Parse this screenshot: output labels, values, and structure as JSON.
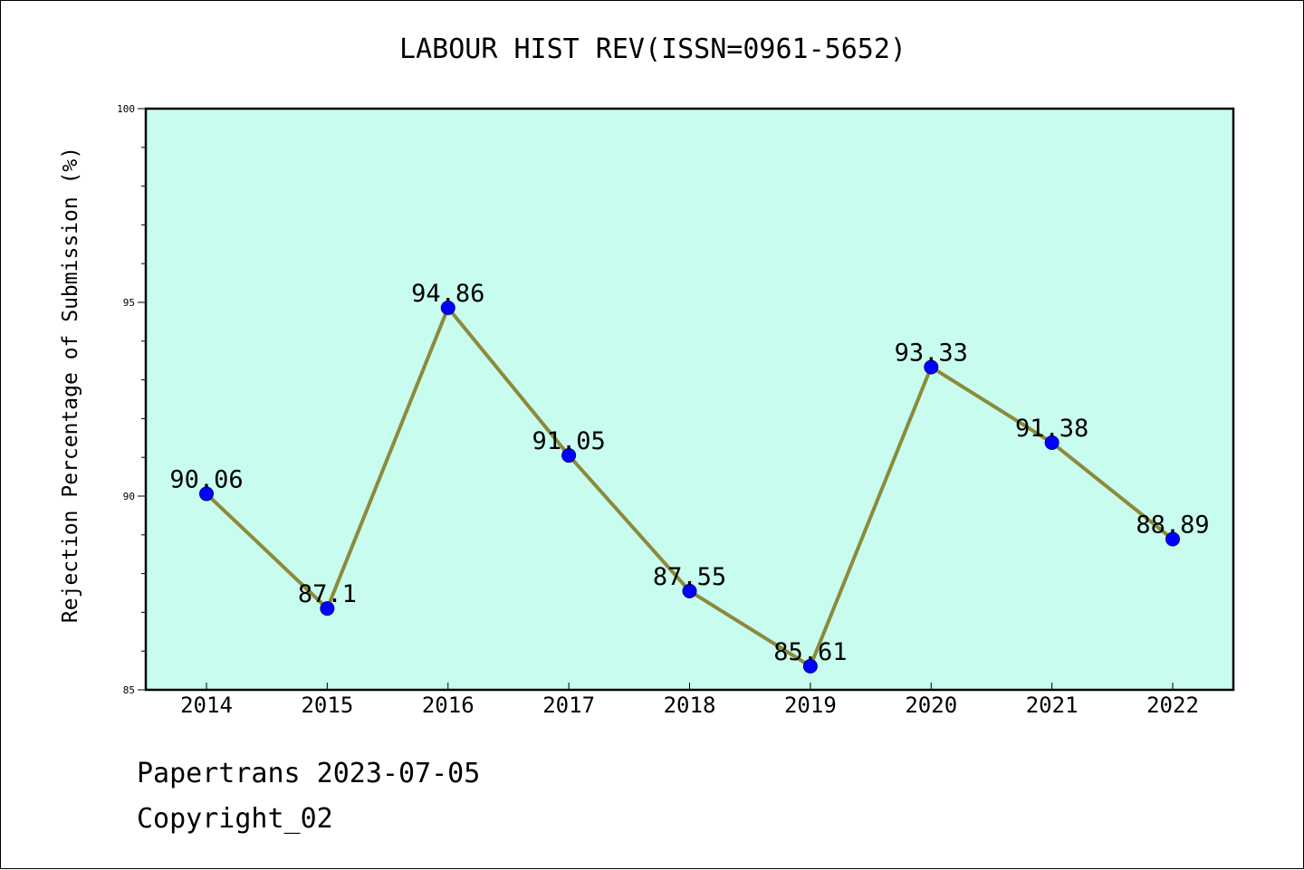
{
  "chart_data": {
    "type": "line",
    "title": "LABOUR HIST REV(ISSN=0961-5652)",
    "xlabel": "",
    "ylabel": "Rejection Percentage of Submission (%)",
    "categories": [
      "2014",
      "2015",
      "2016",
      "2017",
      "2018",
      "2019",
      "2020",
      "2021",
      "2022"
    ],
    "series": [
      {
        "values": [
          90.06,
          87.1,
          94.86,
          91.05,
          87.55,
          85.61,
          93.33,
          91.38,
          88.89
        ],
        "labels": [
          "90.06",
          "87.1",
          "94.86",
          "91.05",
          "87.55",
          "85.61",
          "93.33",
          "91.38",
          "88.89"
        ]
      }
    ],
    "ylim": [
      85,
      100
    ],
    "yticks": [
      85,
      90,
      95,
      100
    ],
    "ytick_labels": [
      "85",
      "90",
      "95",
      "100"
    ],
    "y_minor_step": 1,
    "grid": false,
    "colors": {
      "plot_background": "#c8fcee",
      "line": "#8c8a3c",
      "marker_fill": "#0000ff",
      "marker_edge": "#000088"
    }
  },
  "footer": {
    "line1": "Papertrans 2023-07-05",
    "line2": "Copyright_02"
  }
}
